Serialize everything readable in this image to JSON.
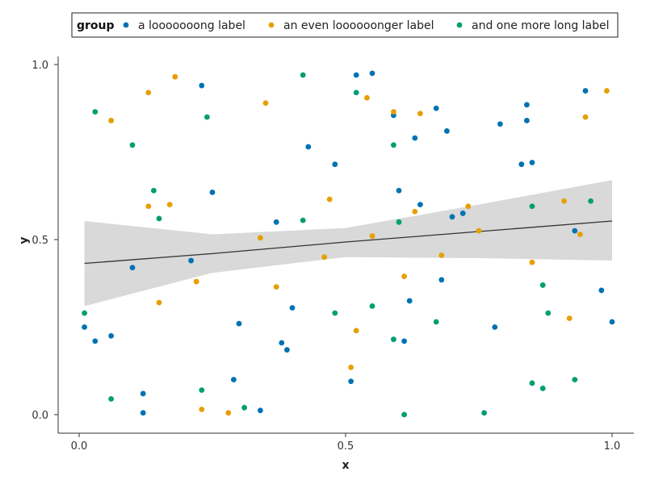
{
  "chart_data": {
    "type": "scatter",
    "xlabel": "x",
    "ylabel": "y",
    "xlim": [
      0,
      1
    ],
    "ylim": [
      0,
      1
    ],
    "x_ticks": [
      0.0,
      0.5,
      1.0
    ],
    "y_ticks": [
      0.0,
      0.5,
      1.0
    ],
    "x_tick_labels": [
      "0.0",
      "0.5",
      "1.0"
    ],
    "y_tick_labels": [
      "0.0",
      "0.5",
      "1.0"
    ],
    "legend": {
      "title": "group",
      "position": "top",
      "entries": [
        "a looooooong label",
        "an even loooooonger label",
        "and one more long label"
      ]
    },
    "series": [
      {
        "name": "a looooooong label",
        "color": "#0072B2",
        "points": [
          [
            0.01,
            0.25
          ],
          [
            0.03,
            0.21
          ],
          [
            0.06,
            0.225
          ],
          [
            0.1,
            0.42
          ],
          [
            0.12,
            0.06
          ],
          [
            0.12,
            0.005
          ],
          [
            0.21,
            0.44
          ],
          [
            0.23,
            0.94
          ],
          [
            0.25,
            0.635
          ],
          [
            0.29,
            0.1
          ],
          [
            0.3,
            0.26
          ],
          [
            0.34,
            0.012
          ],
          [
            0.37,
            0.55
          ],
          [
            0.38,
            0.205
          ],
          [
            0.39,
            0.185
          ],
          [
            0.4,
            0.305
          ],
          [
            0.43,
            0.765
          ],
          [
            0.48,
            0.715
          ],
          [
            0.51,
            0.095
          ],
          [
            0.52,
            0.97
          ],
          [
            0.55,
            0.975
          ],
          [
            0.59,
            0.855
          ],
          [
            0.6,
            0.64
          ],
          [
            0.61,
            0.21
          ],
          [
            0.62,
            0.325
          ],
          [
            0.63,
            0.79
          ],
          [
            0.64,
            0.6
          ],
          [
            0.67,
            0.875
          ],
          [
            0.68,
            0.385
          ],
          [
            0.69,
            0.81
          ],
          [
            0.7,
            0.565
          ],
          [
            0.72,
            0.575
          ],
          [
            0.78,
            0.25
          ],
          [
            0.79,
            0.83
          ],
          [
            0.83,
            0.715
          ],
          [
            0.84,
            0.84
          ],
          [
            0.84,
            0.885
          ],
          [
            0.85,
            0.72
          ],
          [
            0.93,
            0.525
          ],
          [
            0.95,
            0.925
          ],
          [
            0.98,
            0.355
          ],
          [
            1.0,
            0.265
          ]
        ]
      },
      {
        "name": "an even loooooonger label",
        "color": "#E69F00",
        "points": [
          [
            0.06,
            0.84
          ],
          [
            0.13,
            0.92
          ],
          [
            0.13,
            0.595
          ],
          [
            0.15,
            0.32
          ],
          [
            0.17,
            0.6
          ],
          [
            0.18,
            0.965
          ],
          [
            0.22,
            0.38
          ],
          [
            0.23,
            0.015
          ],
          [
            0.28,
            0.005
          ],
          [
            0.34,
            0.505
          ],
          [
            0.35,
            0.89
          ],
          [
            0.37,
            0.365
          ],
          [
            0.46,
            0.45
          ],
          [
            0.47,
            0.615
          ],
          [
            0.51,
            0.135
          ],
          [
            0.52,
            0.24
          ],
          [
            0.54,
            0.905
          ],
          [
            0.55,
            0.51
          ],
          [
            0.59,
            0.865
          ],
          [
            0.61,
            0.395
          ],
          [
            0.63,
            0.58
          ],
          [
            0.64,
            0.86
          ],
          [
            0.68,
            0.455
          ],
          [
            0.73,
            0.595
          ],
          [
            0.75,
            0.525
          ],
          [
            0.85,
            0.435
          ],
          [
            0.91,
            0.61
          ],
          [
            0.92,
            0.275
          ],
          [
            0.94,
            0.515
          ],
          [
            0.95,
            0.85
          ],
          [
            0.99,
            0.925
          ]
        ]
      },
      {
        "name": "and one more long label",
        "color": "#009E73",
        "points": [
          [
            0.01,
            0.29
          ],
          [
            0.03,
            0.865
          ],
          [
            0.06,
            0.045
          ],
          [
            0.1,
            0.77
          ],
          [
            0.14,
            0.64
          ],
          [
            0.15,
            0.56
          ],
          [
            0.23,
            0.07
          ],
          [
            0.24,
            0.85
          ],
          [
            0.31,
            0.02
          ],
          [
            0.42,
            0.97
          ],
          [
            0.42,
            0.555
          ],
          [
            0.48,
            0.29
          ],
          [
            0.52,
            0.92
          ],
          [
            0.55,
            0.31
          ],
          [
            0.59,
            0.215
          ],
          [
            0.59,
            0.77
          ],
          [
            0.6,
            0.55
          ],
          [
            0.61,
            0.0
          ],
          [
            0.67,
            0.265
          ],
          [
            0.76,
            0.005
          ],
          [
            0.85,
            0.595
          ],
          [
            0.85,
            0.09
          ],
          [
            0.87,
            0.37
          ],
          [
            0.87,
            0.075
          ],
          [
            0.88,
            0.29
          ],
          [
            0.93,
            0.1
          ],
          [
            0.96,
            0.61
          ]
        ]
      }
    ],
    "trend": {
      "type": "linear fit with confidence band",
      "line_color": "#333333",
      "band_color": "#d9d9d9",
      "x": [
        0.01,
        0.25,
        0.5,
        0.75,
        1.0
      ],
      "y": [
        0.432,
        0.46,
        0.493,
        0.523,
        0.553
      ],
      "lower": [
        0.31,
        0.405,
        0.45,
        0.447,
        0.44
      ],
      "upper": [
        0.553,
        0.515,
        0.533,
        0.6,
        0.67
      ]
    },
    "grid": false
  }
}
